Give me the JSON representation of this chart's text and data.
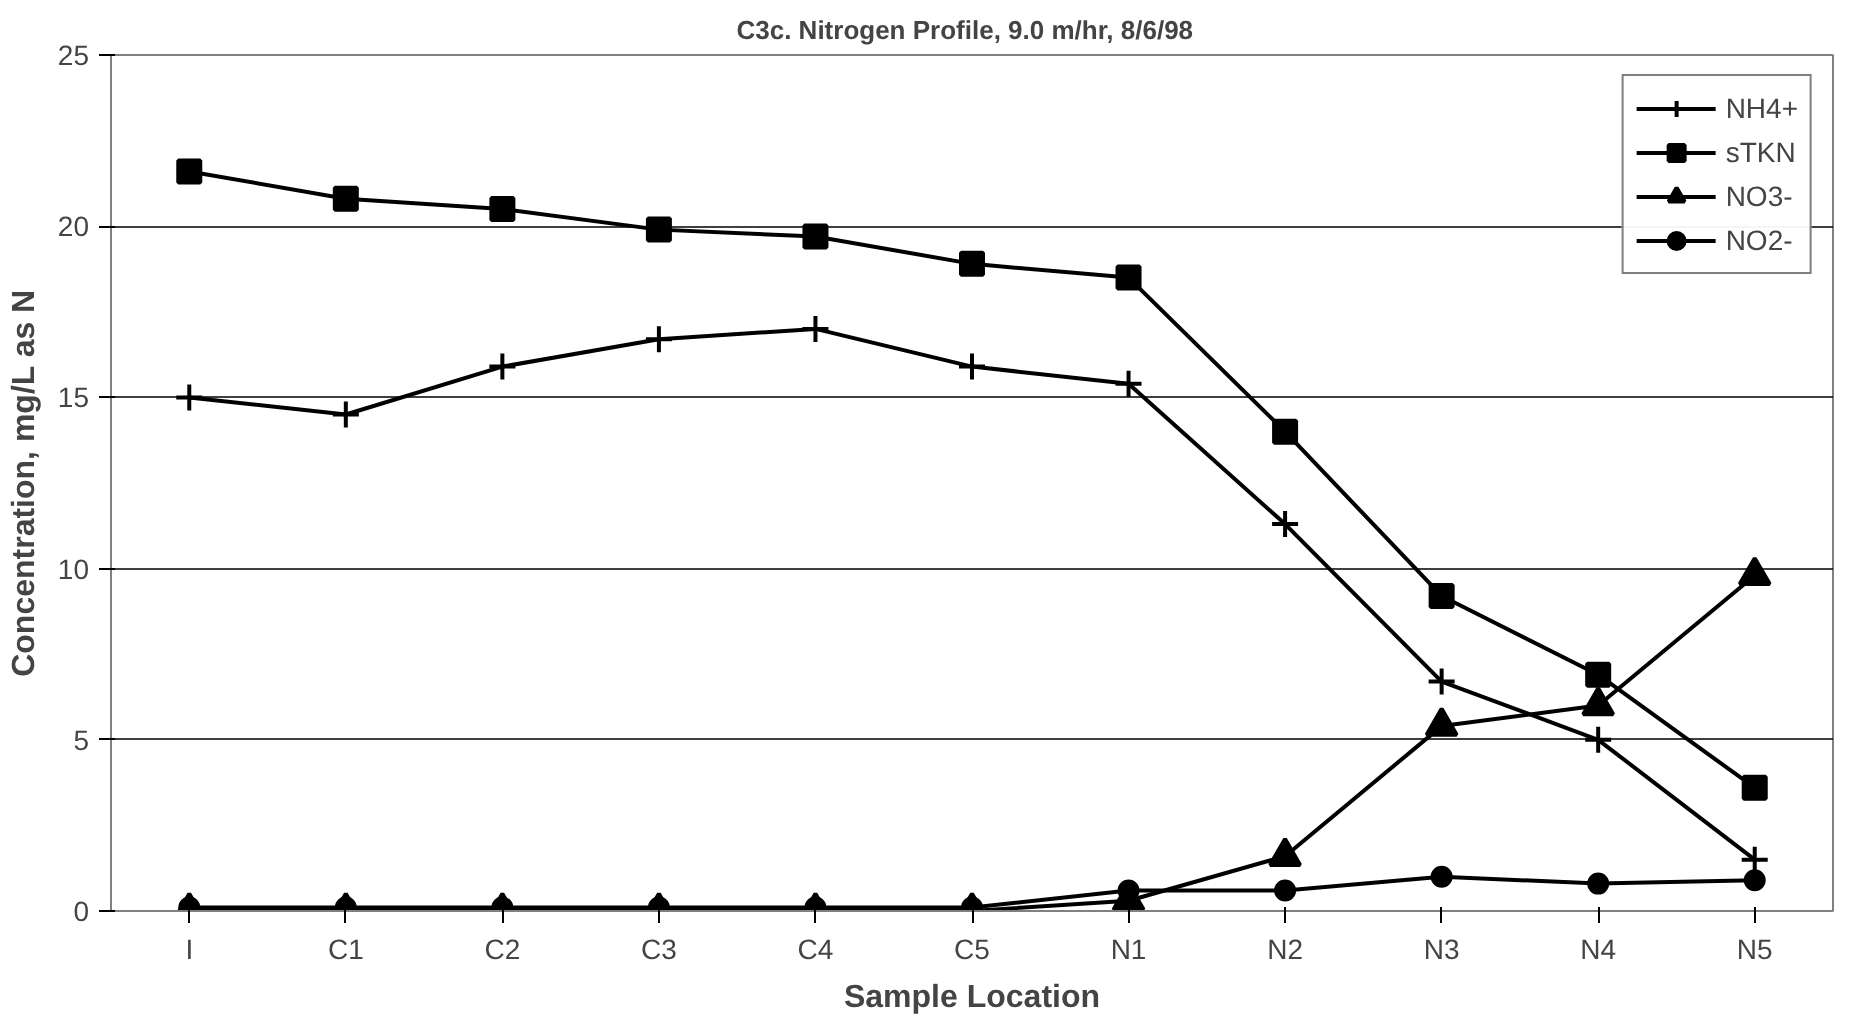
{
  "chart_data": {
    "type": "line",
    "title": "C3c.  Nitrogen Profile,  9.0 m/hr, 8/6/98",
    "xlabel": "Sample Location",
    "ylabel": "Concentration, mg/L as N",
    "categories": [
      "I",
      "C1",
      "C2",
      "C3",
      "C4",
      "C5",
      "N1",
      "N2",
      "N3",
      "N4",
      "N5"
    ],
    "series": [
      {
        "name": "NH4+",
        "color": "#000000",
        "marker": "cross",
        "values": [
          15.0,
          14.5,
          15.9,
          16.7,
          17.0,
          15.9,
          15.4,
          11.3,
          6.7,
          5.0,
          1.5
        ]
      },
      {
        "name": "sTKN",
        "color": "#000000",
        "marker": "square",
        "values": [
          21.6,
          20.8,
          20.5,
          19.9,
          19.7,
          18.9,
          18.5,
          14.0,
          9.2,
          6.9,
          3.6
        ]
      },
      {
        "name": "NO3-",
        "color": "#000000",
        "marker": "triangle",
        "values": [
          0.0,
          0.0,
          0.0,
          0.0,
          0.0,
          0.0,
          0.3,
          1.6,
          5.4,
          6.0,
          9.8
        ]
      },
      {
        "name": "NO2-",
        "color": "#000000",
        "marker": "circle",
        "values": [
          0.1,
          0.1,
          0.1,
          0.1,
          0.1,
          0.1,
          0.6,
          0.6,
          1.0,
          0.8,
          0.9
        ]
      }
    ],
    "ylim": [
      0,
      25
    ],
    "yticks": [
      0,
      5,
      10,
      15,
      20,
      25
    ],
    "grid": "y",
    "legend": "top right",
    "line_style": "solid"
  }
}
